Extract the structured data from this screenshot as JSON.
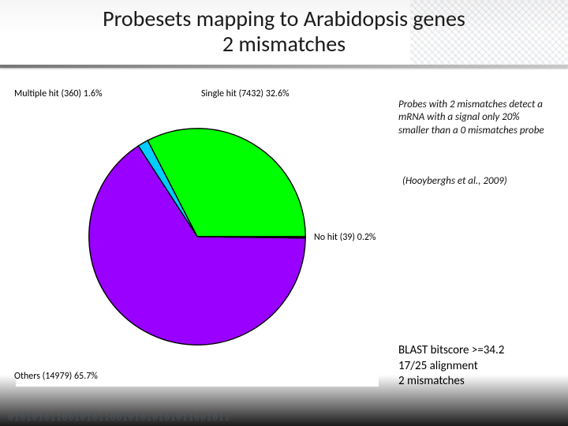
{
  "title": {
    "line1": "Probesets mapping to Arabidopsis genes",
    "line2": "2 mismatches",
    "fontsize": 28,
    "color": "#1a1a1a"
  },
  "chart": {
    "type": "pie",
    "background_color": "#ffffff",
    "slice_border_color": "#000000",
    "slice_border_width": 1,
    "slices": [
      {
        "label": "Others (14979) 65.7%",
        "value": 65.7,
        "color": "#9900ff",
        "label_pos": "bottom-left"
      },
      {
        "label": "Single hit (7432) 32.6%",
        "value": 32.6,
        "color": "#00ff00",
        "label_pos": "top-right"
      },
      {
        "label": "Multiple hit (360) 1.6%",
        "value": 1.6,
        "color": "#00ccff",
        "label_pos": "top-left"
      },
      {
        "label": "No hit (39) 0.2%",
        "value": 0.2,
        "color": "#ff0000",
        "label_pos": "right"
      }
    ],
    "label_fontsize": 12,
    "label_color": "#000000",
    "start_angle_deg": 0
  },
  "note": {
    "text": "Probes with 2 mismatches detect a mRNA with a signal only 20% smaller than a 0 mismatches probe",
    "fontsize": 13,
    "italic": true
  },
  "citation": {
    "text": "(Hooyberghs et al., 2009)",
    "fontsize": 13,
    "italic": true
  },
  "blast": {
    "line1": "BLAST bitscore >=34.2",
    "line2": "17/25 alignment",
    "line3": "2 mismatches",
    "fontsize": 15
  },
  "footer_binary": "0101010110010101100101010101011001011"
}
